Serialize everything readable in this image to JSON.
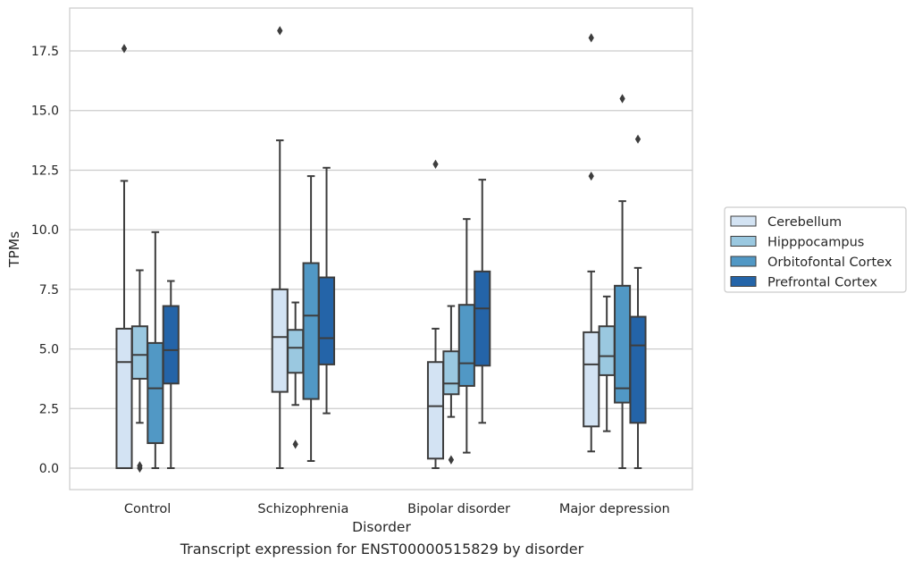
{
  "caption": "Transcript expression for ENST00000515829 by disorder",
  "chart_data": {
    "type": "box",
    "title": "",
    "xlabel": "Disorder",
    "ylabel": "TPMs",
    "ylim": [
      -0.9,
      19.3
    ],
    "yticks": [
      0.0,
      2.5,
      5.0,
      7.5,
      10.0,
      12.5,
      15.0,
      17.5
    ],
    "ytick_labels": [
      "0.0",
      "2.5",
      "5.0",
      "7.5",
      "10.0",
      "12.5",
      "15.0",
      "17.5"
    ],
    "grid": true,
    "legend_position": "right",
    "categories": [
      "Control",
      "Schizophrenia",
      "Bipolar disorder",
      "Major depression"
    ],
    "series": [
      {
        "name": "Cerebellum",
        "color": "#d3e3f3",
        "boxes": [
          {
            "whislo": 0.0,
            "q1": 0.0,
            "med": 4.45,
            "q3": 5.85,
            "whishi": 12.05,
            "fliers": [
              17.6
            ]
          },
          {
            "whislo": 0.0,
            "q1": 3.2,
            "med": 5.5,
            "q3": 7.5,
            "whishi": 13.75,
            "fliers": [
              18.35
            ]
          },
          {
            "whislo": 0.0,
            "q1": 0.4,
            "med": 2.6,
            "q3": 4.45,
            "whishi": 5.85,
            "fliers": [
              12.75
            ]
          },
          {
            "whislo": 0.7,
            "q1": 1.75,
            "med": 4.35,
            "q3": 5.7,
            "whishi": 8.25,
            "fliers": [
              12.25,
              18.05
            ]
          }
        ]
      },
      {
        "name": "Hipppocampus",
        "color": "#9ac8e0",
        "boxes": [
          {
            "whislo": 1.9,
            "q1": 3.75,
            "med": 4.75,
            "q3": 5.95,
            "whishi": 8.3,
            "fliers": [
              0.0,
              0.1
            ]
          },
          {
            "whislo": 2.65,
            "q1": 4.0,
            "med": 5.05,
            "q3": 5.8,
            "whishi": 6.95,
            "fliers": [
              1.0
            ]
          },
          {
            "whislo": 2.15,
            "q1": 3.1,
            "med": 3.55,
            "q3": 4.9,
            "whishi": 6.8,
            "fliers": [
              0.35
            ]
          },
          {
            "whislo": 1.55,
            "q1": 3.9,
            "med": 4.7,
            "q3": 5.95,
            "whishi": 7.2,
            "fliers": []
          }
        ]
      },
      {
        "name": "Orbitofontal Cortex",
        "color": "#5198c5",
        "boxes": [
          {
            "whislo": 0.0,
            "q1": 1.05,
            "med": 3.35,
            "q3": 5.25,
            "whishi": 9.9,
            "fliers": []
          },
          {
            "whislo": 0.3,
            "q1": 2.9,
            "med": 6.4,
            "q3": 8.6,
            "whishi": 12.25,
            "fliers": []
          },
          {
            "whislo": 0.65,
            "q1": 3.45,
            "med": 4.4,
            "q3": 6.85,
            "whishi": 10.45,
            "fliers": []
          },
          {
            "whislo": 0.0,
            "q1": 2.75,
            "med": 3.35,
            "q3": 7.65,
            "whishi": 11.2,
            "fliers": [
              15.5
            ]
          }
        ]
      },
      {
        "name": "Prefrontal Cortex",
        "color": "#2464a8",
        "boxes": [
          {
            "whislo": 0.0,
            "q1": 3.55,
            "med": 4.95,
            "q3": 6.8,
            "whishi": 7.85,
            "fliers": []
          },
          {
            "whislo": 2.3,
            "q1": 4.35,
            "med": 5.45,
            "q3": 8.0,
            "whishi": 12.6,
            "fliers": []
          },
          {
            "whislo": 1.9,
            "q1": 4.3,
            "med": 6.7,
            "q3": 8.25,
            "whishi": 12.1,
            "fliers": []
          },
          {
            "whislo": 0.0,
            "q1": 1.9,
            "med": 5.15,
            "q3": 6.35,
            "whishi": 8.4,
            "fliers": [
              13.8
            ]
          }
        ]
      }
    ]
  }
}
